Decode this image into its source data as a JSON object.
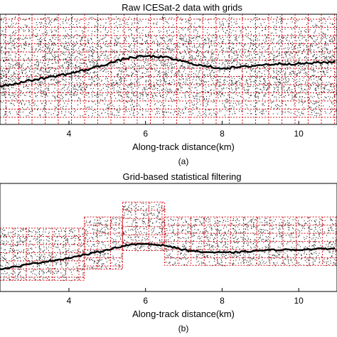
{
  "chart_data": [
    {
      "type": "scatter",
      "panel": "(a)",
      "title": "Raw ICESat-2 data with grids",
      "xlabel": "Along-track distance(km)",
      "ylabel": "",
      "x_ticks": [
        4,
        6,
        8,
        10
      ],
      "xlim": [
        2.2,
        11.0
      ],
      "grid": true,
      "grid_color": "#e0101a",
      "point_color": "#222222",
      "series": [
        {
          "kind": "ground-profile",
          "x": [
            2.2,
            2.6,
            3.0,
            3.5,
            4.0,
            4.5,
            5.0,
            5.5,
            6.0,
            6.5,
            7.0,
            7.5,
            8.0,
            8.5,
            9.0,
            9.5,
            10.0,
            10.5,
            11.0
          ],
          "y": [
            0.35,
            0.37,
            0.4,
            0.43,
            0.46,
            0.5,
            0.55,
            0.6,
            0.62,
            0.61,
            0.57,
            0.53,
            0.51,
            0.52,
            0.54,
            0.55,
            0.55,
            0.56,
            0.57
          ]
        }
      ]
    },
    {
      "type": "scatter",
      "panel": "(b)",
      "title": "Grid-based statistical filtering",
      "xlabel": "Along-track distance(km)",
      "ylabel": "",
      "x_ticks": [
        4,
        6,
        8,
        10
      ],
      "xlim": [
        2.2,
        11.0
      ],
      "grid": true,
      "grid_color": "#e0101a",
      "point_color": "#222222",
      "series": [
        {
          "kind": "ground-profile",
          "x": [
            2.2,
            2.6,
            3.0,
            3.5,
            4.0,
            4.5,
            5.0,
            5.5,
            6.0,
            6.5,
            7.0,
            7.5,
            8.0,
            8.5,
            9.0,
            9.5,
            10.0,
            10.5,
            11.0
          ],
          "y": [
            0.3,
            0.33,
            0.37,
            0.41,
            0.45,
            0.5,
            0.56,
            0.62,
            0.64,
            0.62,
            0.56,
            0.53,
            0.52,
            0.53,
            0.55,
            0.56,
            0.56,
            0.57,
            0.58
          ]
        },
        {
          "kind": "retained-grid-blocks",
          "blocks": [
            {
              "x0": 2.2,
              "x1": 4.4,
              "y0": 0.15,
              "y1": 0.85
            },
            {
              "x0": 4.4,
              "x1": 5.4,
              "y0": 0.3,
              "y1": 1.0
            },
            {
              "x0": 5.4,
              "x1": 6.5,
              "y0": 0.55,
              "y1": 1.2
            },
            {
              "x0": 6.5,
              "x1": 11.0,
              "y0": 0.35,
              "y1": 1.0
            }
          ]
        }
      ]
    }
  ]
}
